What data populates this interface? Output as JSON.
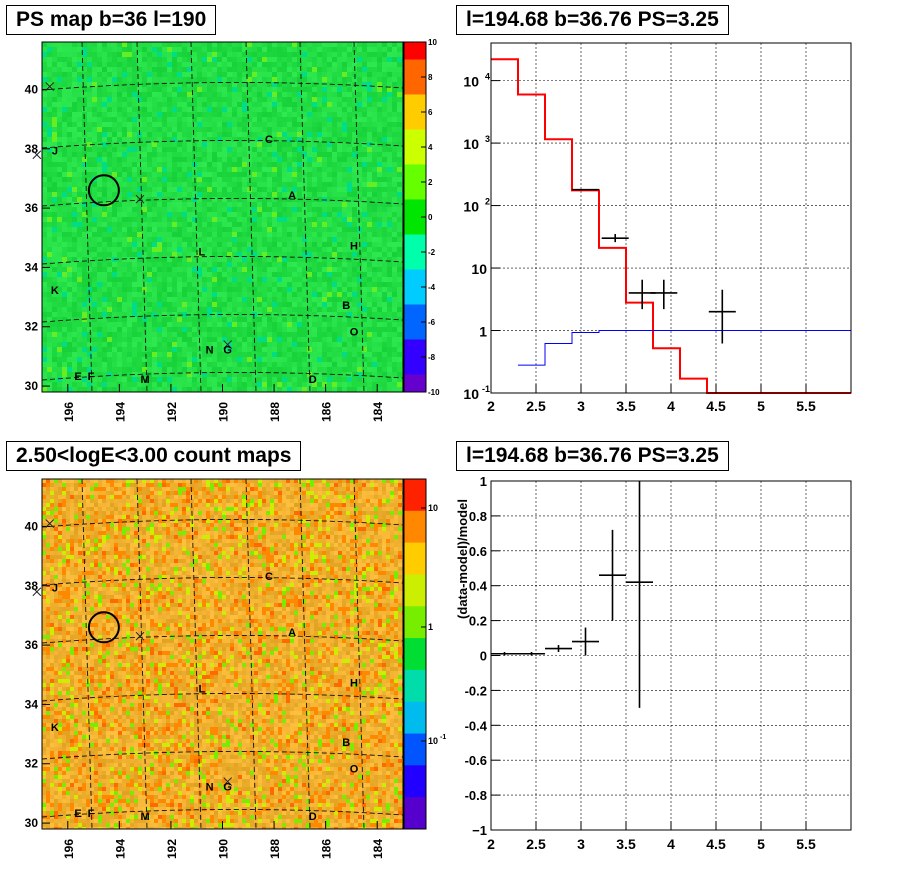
{
  "panels": {
    "ps_map": {
      "title": "PS map b=36 l=190",
      "x_ticks": [
        "196",
        "194",
        "192",
        "190",
        "188",
        "186",
        "184"
      ],
      "y_ticks": [
        "30",
        "32",
        "34",
        "36",
        "38",
        "40"
      ],
      "colorbar_ticks": [
        "-10",
        "-8",
        "-6",
        "-4",
        "-2",
        "0",
        "2",
        "4",
        "6",
        "8",
        "10"
      ],
      "source_labels": [
        "A",
        "B",
        "C",
        "D",
        "E",
        "F",
        "G",
        "H",
        "J",
        "K",
        "L",
        "M",
        "N",
        "O"
      ]
    },
    "count_map": {
      "title": "2.50<logE<3.00 count maps",
      "x_ticks": [
        "196",
        "194",
        "192",
        "190",
        "188",
        "186",
        "184"
      ],
      "y_ticks": [
        "30",
        "32",
        "34",
        "36",
        "38",
        "40"
      ],
      "colorbar_ticks": [
        "10",
        "1",
        "10"
      ],
      "colorbar_exponent": "-1",
      "source_labels": [
        "A",
        "B",
        "C",
        "D",
        "E",
        "F",
        "G",
        "H",
        "J",
        "K",
        "L",
        "M",
        "N",
        "O"
      ]
    },
    "spectrum": {
      "title": "l=194.68 b=36.76 PS=3.25"
    },
    "residual": {
      "title": "l=194.68 b=36.76 PS=3.25"
    }
  },
  "chart_data": [
    {
      "type": "heatmap",
      "panel": "PS map",
      "title": "PS map b=36 l=190",
      "xlim": [
        197,
        183
      ],
      "ylim": [
        29.8,
        41.6
      ],
      "z_range": [
        -10,
        10
      ],
      "colormap": [
        "#6600cc",
        "#3300ff",
        "#0066ff",
        "#00ccff",
        "#00ffaa",
        "#00e600",
        "#66ff00",
        "#ccff00",
        "#ffcc00",
        "#ff6600",
        "#ff0000"
      ],
      "dominant_color": "#22dd44",
      "sources": [
        {
          "label": "C",
          "x": 188.2,
          "y": 38.2
        },
        {
          "label": "A",
          "x": 187.3,
          "y": 36.3
        },
        {
          "label": "H",
          "x": 184.9,
          "y": 34.6
        },
        {
          "label": "J",
          "x": 196.5,
          "y": 37.8
        },
        {
          "label": "L",
          "x": 190.8,
          "y": 34.4
        },
        {
          "label": "K",
          "x": 196.5,
          "y": 33.1
        },
        {
          "label": "B",
          "x": 185.2,
          "y": 32.6
        },
        {
          "label": "O",
          "x": 184.9,
          "y": 31.7
        },
        {
          "label": "N",
          "x": 190.5,
          "y": 31.1
        },
        {
          "label": "G",
          "x": 189.8,
          "y": 31.1
        },
        {
          "label": "E",
          "x": 195.6,
          "y": 30.2
        },
        {
          "label": "F",
          "x": 195.1,
          "y": 30.2
        },
        {
          "label": "M",
          "x": 193.0,
          "y": 30.1
        },
        {
          "label": "D",
          "x": 186.5,
          "y": 30.1
        }
      ],
      "crosses": [
        {
          "x": 196.7,
          "y": 40.1
        },
        {
          "x": 197.2,
          "y": 37.8
        },
        {
          "x": 193.2,
          "y": 36.3
        },
        {
          "x": 189.8,
          "y": 31.4
        }
      ],
      "circle": {
        "x": 194.6,
        "y": 36.6
      }
    },
    {
      "type": "heatmap",
      "panel": "count map",
      "title": "2.50<logE<3.00 count maps",
      "xlim": [
        197,
        183
      ],
      "ylim": [
        29.8,
        41.6
      ],
      "log_z": true,
      "colormap": [
        "#5500cc",
        "#2200ff",
        "#0055ff",
        "#00bbee",
        "#00ddaa",
        "#00dd33",
        "#77ee00",
        "#ccee00",
        "#ffcc00",
        "#ff8800",
        "#ff2200"
      ],
      "dominant_color": "#f0a030",
      "sources": [
        {
          "label": "C",
          "x": 188.2,
          "y": 38.2
        },
        {
          "label": "A",
          "x": 187.3,
          "y": 36.3
        },
        {
          "label": "H",
          "x": 184.9,
          "y": 34.6
        },
        {
          "label": "J",
          "x": 196.5,
          "y": 37.8
        },
        {
          "label": "L",
          "x": 190.8,
          "y": 34.4
        },
        {
          "label": "K",
          "x": 196.5,
          "y": 33.1
        },
        {
          "label": "B",
          "x": 185.2,
          "y": 32.6
        },
        {
          "label": "O",
          "x": 184.9,
          "y": 31.7
        },
        {
          "label": "N",
          "x": 190.5,
          "y": 31.1
        },
        {
          "label": "G",
          "x": 189.8,
          "y": 31.1
        },
        {
          "label": "E",
          "x": 195.6,
          "y": 30.2
        },
        {
          "label": "F",
          "x": 195.1,
          "y": 30.2
        },
        {
          "label": "M",
          "x": 193.0,
          "y": 30.1
        },
        {
          "label": "D",
          "x": 186.5,
          "y": 30.1
        }
      ],
      "crosses": [
        {
          "x": 196.7,
          "y": 40.1
        },
        {
          "x": 197.2,
          "y": 37.8
        },
        {
          "x": 193.2,
          "y": 36.3
        },
        {
          "x": 189.8,
          "y": 31.4
        }
      ],
      "circle": {
        "x": 194.6,
        "y": 36.6
      }
    },
    {
      "type": "line",
      "panel": "spectrum",
      "title": "l=194.68 b=36.76 PS=3.25",
      "log_y": true,
      "xlim": [
        2,
        6
      ],
      "ylim": [
        0.1,
        40000
      ],
      "x_ticks": [
        2,
        2.5,
        3,
        3.5,
        4,
        4.5,
        5,
        5.5
      ],
      "y_ticks": [
        {
          "v": 0.1,
          "label": "10",
          "exp": "-1"
        },
        {
          "v": 1,
          "label": "1",
          "exp": ""
        },
        {
          "v": 10,
          "label": "10",
          "exp": ""
        },
        {
          "v": 100,
          "label": "10",
          "exp": "2"
        },
        {
          "v": 1000,
          "label": "10",
          "exp": "3"
        },
        {
          "v": 10000,
          "label": "10",
          "exp": "4"
        }
      ],
      "grid": true,
      "series": [
        {
          "color": "#ff0000",
          "kind": "step",
          "edges": [
            2.0,
            2.3,
            2.6,
            2.9,
            3.2,
            3.5,
            3.8,
            4.1,
            4.4,
            6.0
          ],
          "values": [
            22000,
            6000,
            1150,
            175,
            21,
            2.8,
            0.52,
            0.17,
            0.1
          ]
        },
        {
          "color": "#0000ff",
          "kind": "step",
          "edges": [
            2.3,
            2.6,
            2.9,
            3.2,
            6.0
          ],
          "values": [
            0.28,
            0.62,
            0.93,
            1.0
          ]
        },
        {
          "color": "#000000",
          "kind": "points",
          "points": [
            {
              "x": 3.05,
              "y": 180,
              "xerr": 0.15,
              "ylo": null,
              "yhi": null
            },
            {
              "x": 3.38,
              "y": 30,
              "xerr": 0.15,
              "ylo": 26,
              "yhi": 35
            },
            {
              "x": 3.68,
              "y": 4,
              "xerr": 0.15,
              "ylo": 2.2,
              "yhi": 6.5
            },
            {
              "x": 3.92,
              "y": 4,
              "xerr": 0.15,
              "ylo": 2.2,
              "yhi": 6.5
            },
            {
              "x": 4.57,
              "y": 2,
              "xerr": 0.15,
              "ylo": 0.62,
              "yhi": 4.5
            }
          ]
        }
      ]
    },
    {
      "type": "scatter",
      "panel": "residual",
      "title": "l=194.68 b=36.76 PS=3.25",
      "ylabel": "(data-model)/model",
      "xlim": [
        2,
        6
      ],
      "ylim": [
        -1,
        1
      ],
      "x_ticks": [
        2,
        2.5,
        3,
        3.5,
        4,
        4.5,
        5,
        5.5
      ],
      "y_ticks": [
        -1,
        -0.8,
        -0.6,
        -0.4,
        -0.2,
        0,
        0.2,
        0.4,
        0.6,
        0.8,
        1
      ],
      "grid": true,
      "points": [
        {
          "x": 2.15,
          "y": 0.01,
          "xerr": 0.15,
          "ylo": 0.0,
          "yhi": 0.02
        },
        {
          "x": 2.45,
          "y": 0.01,
          "xerr": 0.15,
          "ylo": 0.0,
          "yhi": 0.02
        },
        {
          "x": 2.75,
          "y": 0.04,
          "xerr": 0.15,
          "ylo": 0.02,
          "yhi": 0.06
        },
        {
          "x": 3.05,
          "y": 0.08,
          "xerr": 0.15,
          "ylo": 0.0,
          "yhi": 0.16
        },
        {
          "x": 3.35,
          "y": 0.46,
          "xerr": 0.15,
          "ylo": 0.2,
          "yhi": 0.72
        },
        {
          "x": 3.65,
          "y": 0.42,
          "xerr": 0.15,
          "ylo": -0.3,
          "yhi": 1.0
        }
      ]
    }
  ]
}
